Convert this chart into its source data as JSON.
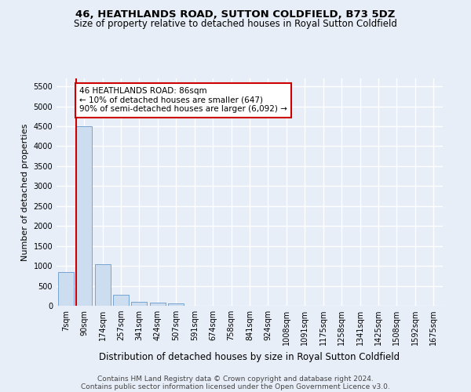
{
  "title1": "46, HEATHLANDS ROAD, SUTTON COLDFIELD, B73 5DZ",
  "title2": "Size of property relative to detached houses in Royal Sutton Coldfield",
  "xlabel": "Distribution of detached houses by size in Royal Sutton Coldfield",
  "ylabel": "Number of detached properties",
  "footer1": "Contains HM Land Registry data © Crown copyright and database right 2024.",
  "footer2": "Contains public sector information licensed under the Open Government Licence v3.0.",
  "bar_labels": [
    "7sqm",
    "90sqm",
    "174sqm",
    "257sqm",
    "341sqm",
    "424sqm",
    "507sqm",
    "591sqm",
    "674sqm",
    "758sqm",
    "841sqm",
    "924sqm",
    "1008sqm",
    "1091sqm",
    "1175sqm",
    "1258sqm",
    "1341sqm",
    "1425sqm",
    "1508sqm",
    "1592sqm",
    "1675sqm"
  ],
  "bar_values": [
    850,
    4500,
    1050,
    275,
    90,
    70,
    50,
    0,
    0,
    0,
    0,
    0,
    0,
    0,
    0,
    0,
    0,
    0,
    0,
    0,
    0
  ],
  "bar_color": "#ccddf0",
  "bar_edge_color": "#6699cc",
  "property_line_color": "#cc0000",
  "property_line_x": 0.575,
  "annotation_text": "46 HEATHLANDS ROAD: 86sqm\n← 10% of detached houses are smaller (647)\n90% of semi-detached houses are larger (6,092) →",
  "annotation_box_color": "#ffffff",
  "annotation_box_edge_color": "#cc0000",
  "ylim": [
    0,
    5700
  ],
  "yticks": [
    0,
    500,
    1000,
    1500,
    2000,
    2500,
    3000,
    3500,
    4000,
    4500,
    5000,
    5500
  ],
  "bg_color": "#e8eef8",
  "plot_bg_color": "#e8eef8",
  "grid_color": "#ffffff",
  "title1_fontsize": 9.5,
  "title2_fontsize": 8.5,
  "xlabel_fontsize": 8.5,
  "ylabel_fontsize": 8.0,
  "annotation_fontsize": 7.5,
  "tick_fontsize": 7.0,
  "footer_fontsize": 6.5
}
